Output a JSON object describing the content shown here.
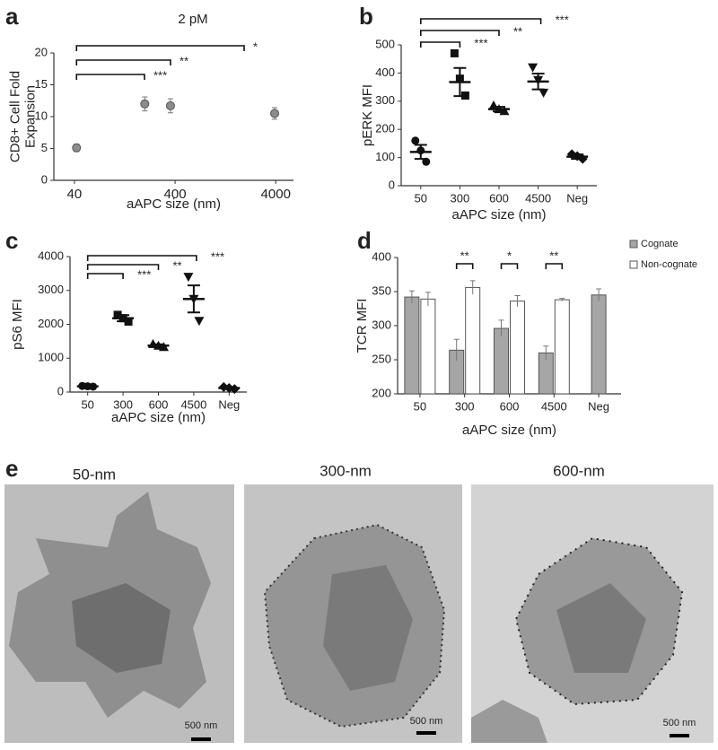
{
  "chart_data": [
    {
      "type": "scatter",
      "panel": "a",
      "title": "2 pM",
      "x_label": "aAPC size (nm)",
      "y_label": [
        "CD8+ Cell Fold",
        "Expansion"
      ],
      "x": [
        42,
        200,
        360,
        3900
      ],
      "values": [
        5.1,
        12.0,
        11.7,
        10.5
      ],
      "errors": [
        0.6,
        1.1,
        1.1,
        0.9
      ],
      "color": "#8c8c8c",
      "log_x": true,
      "xlim": [
        25,
        6000
      ],
      "xticks": [
        40,
        400,
        4000
      ],
      "ylim": [
        0,
        20
      ],
      "yticks": [
        0,
        5,
        10,
        15,
        20
      ],
      "significance": [
        "***",
        "**",
        "*"
      ]
    },
    {
      "type": "dot",
      "panel": "b",
      "x_label": "aAPC size (nm)",
      "y_label": [
        "pERK MFI"
      ],
      "categories": [
        "50",
        "300",
        "600",
        "4500",
        "Neg"
      ],
      "points": [
        [
          160,
          125,
          85
        ],
        [
          470,
          380,
          320
        ],
        [
          285,
          272,
          265
        ],
        [
          420,
          375,
          330
        ],
        [
          112,
          105,
          95
        ]
      ],
      "means": [
        120,
        368,
        272,
        370,
        103
      ],
      "errors": [
        25,
        50,
        8,
        28,
        8
      ],
      "markers": [
        "circle",
        "square",
        "triangle",
        "triangle-down",
        "diamond"
      ],
      "color": "#111111",
      "ylim": [
        0,
        500
      ],
      "yticks": [
        0,
        100,
        200,
        300,
        400,
        500
      ],
      "significance": [
        "***",
        "**",
        "***"
      ]
    },
    {
      "type": "dot",
      "panel": "c",
      "x_label": "aAPC size (nm)",
      "y_label": [
        "pS6 MFI"
      ],
      "categories": [
        "50",
        "300",
        "600",
        "4500",
        "Neg"
      ],
      "points": [
        [
          180,
          170,
          160
        ],
        [
          2280,
          2180,
          2080
        ],
        [
          1420,
          1370,
          1330
        ],
        [
          3400,
          2750,
          2100
        ],
        [
          150,
          120,
          90
        ]
      ],
      "means": [
        170,
        2180,
        1370,
        2750,
        120
      ],
      "errors": [
        10,
        90,
        40,
        400,
        30
      ],
      "markers": [
        "circle",
        "square",
        "triangle",
        "triangle-down",
        "diamond"
      ],
      "color": "#111111",
      "ylim": [
        0,
        4000
      ],
      "yticks": [
        0,
        1000,
        2000,
        3000,
        4000
      ],
      "significance": [
        "***",
        "**",
        "***"
      ]
    },
    {
      "type": "bar",
      "panel": "d",
      "x_label": "aAPC size (nm)",
      "y_label": [
        "TCR MFI"
      ],
      "categories": [
        "50",
        "300",
        "600",
        "4500",
        "Neg"
      ],
      "series": [
        {
          "name": "Cognate",
          "color": "#a6a6a6",
          "values": [
            342,
            264,
            296,
            260,
            345
          ],
          "errors": [
            9,
            16,
            12,
            10,
            9
          ]
        },
        {
          "name": "Non-cognate",
          "color": "#ffffff",
          "values": [
            339,
            356,
            336,
            338,
            null
          ],
          "errors": [
            10,
            10,
            8,
            2,
            null
          ]
        }
      ],
      "ylim": [
        200,
        400
      ],
      "yticks": [
        200,
        250,
        300,
        350,
        400
      ],
      "legend": "upper right",
      "significance": [
        "**",
        "*",
        "**"
      ]
    }
  ],
  "images": {
    "panel": "e",
    "items": [
      {
        "title": "50-nm",
        "scale_bar": "500 nm"
      },
      {
        "title": "300-nm",
        "scale_bar": "500 nm"
      },
      {
        "title": "600-nm",
        "scale_bar": "500 nm"
      }
    ]
  }
}
